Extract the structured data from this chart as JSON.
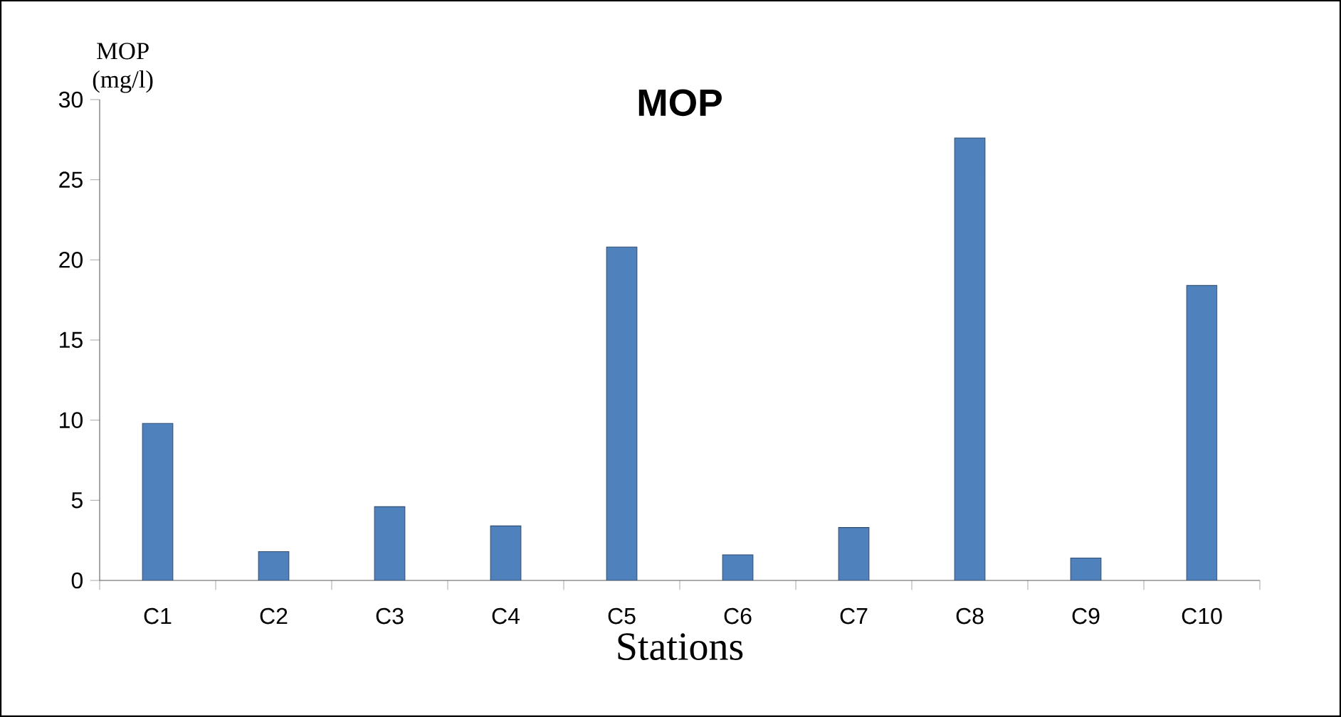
{
  "chart_data": {
    "type": "bar",
    "title": "MOP",
    "xlabel": "Stations",
    "ylabel": "MOP (mg/l)",
    "categories": [
      "C1",
      "C2",
      "C3",
      "C4",
      "C5",
      "C6",
      "C7",
      "C8",
      "C9",
      "C10"
    ],
    "values": [
      9.8,
      1.8,
      4.6,
      3.4,
      20.8,
      1.6,
      3.3,
      27.6,
      1.4,
      18.4
    ],
    "color": "#4f81bd",
    "ylim": [
      0,
      30
    ],
    "yticks": [
      0,
      5,
      10,
      15,
      20,
      25,
      30
    ]
  }
}
